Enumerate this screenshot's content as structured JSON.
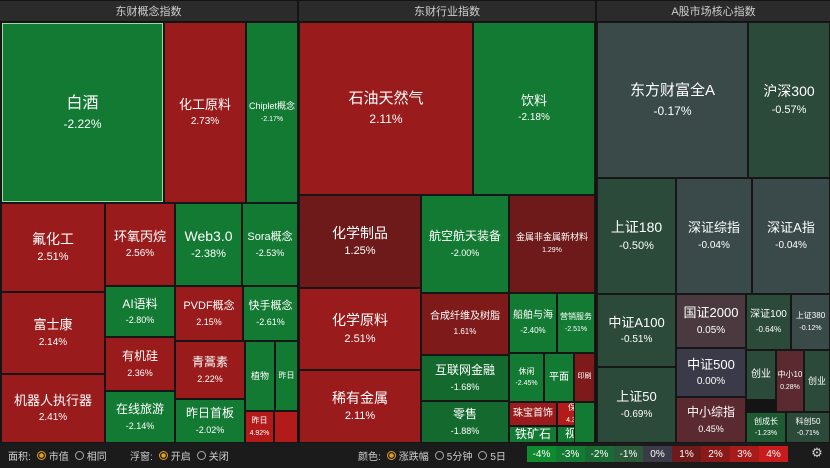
{
  "panels": {
    "concept": "东财概念指数",
    "industry": "东财行业指数",
    "core": "A股市场核心指数"
  },
  "tiles": [
    {
      "n": "白酒",
      "p": "-2.22%",
      "c": "#137a33"
    },
    {
      "n": "化工原料",
      "p": "2.73%",
      "c": "#9a1b1b"
    },
    {
      "n": "Chiplet概念",
      "p": "-2.17%",
      "c": "#137a33"
    },
    {
      "n": "氟化工",
      "p": "2.51%",
      "c": "#9a1b1b"
    },
    {
      "n": "环氧丙烷",
      "p": "2.56%",
      "c": "#9a1b1b"
    },
    {
      "n": "Web3.0",
      "p": "-2.38%",
      "c": "#137a33"
    },
    {
      "n": "Sora概念",
      "p": "-2.53%",
      "c": "#137a33"
    },
    {
      "n": "AI语料",
      "p": "-2.80%",
      "c": "#137a33"
    },
    {
      "n": "PVDF概念",
      "p": "2.15%",
      "c": "#9a1b1b"
    },
    {
      "n": "快手概念",
      "p": "-2.61%",
      "c": "#137a33"
    },
    {
      "n": "富士康",
      "p": "2.14%",
      "c": "#9a1b1b"
    },
    {
      "n": "有机硅",
      "p": "2.36%",
      "c": "#9a1b1b"
    },
    {
      "n": "青蒿素",
      "p": "2.22%",
      "c": "#9a1b1b"
    },
    {
      "n": "植物",
      "p": "",
      "c": "#137a33"
    },
    {
      "n": "昨日",
      "p": "",
      "c": "#137a33"
    },
    {
      "n": "机器人执行器",
      "p": "2.41%",
      "c": "#9a1b1b"
    },
    {
      "n": "在线旅游",
      "p": "-2.14%",
      "c": "#137a33"
    },
    {
      "n": "昨日首板",
      "p": "-2.02%",
      "c": "#137a33"
    },
    {
      "n": "昨日",
      "p": "4.92%",
      "c": "#b31b1b"
    },
    {
      "n": "",
      "p": "",
      "c": "#b31b1b"
    },
    {
      "n": "石油天然气",
      "p": "2.11%",
      "c": "#9a1b1b"
    },
    {
      "n": "饮料",
      "p": "-2.18%",
      "c": "#137a33"
    },
    {
      "n": "化学制品",
      "p": "1.25%",
      "c": "#6e1a1a"
    },
    {
      "n": "航空航天装备",
      "p": "-2.00%",
      "c": "#137a33"
    },
    {
      "n": "金属非金属新材料",
      "p": "1.29%",
      "c": "#6e1a1a"
    },
    {
      "n": "化学原料",
      "p": "2.51%",
      "c": "#9a1b1b"
    },
    {
      "n": "合成纤维及树脂",
      "p": "1.61%",
      "c": "#7f1a1a"
    },
    {
      "n": "船舶与海",
      "p": "-2.40%",
      "c": "#137a33"
    },
    {
      "n": "营销服务",
      "p": "-2.51%",
      "c": "#137a33"
    },
    {
      "n": "互联网金融",
      "p": "-1.68%",
      "c": "#146a2e"
    },
    {
      "n": "休闲",
      "p": "-2.45%",
      "c": "#137a33"
    },
    {
      "n": "平面",
      "p": "",
      "c": "#137a33"
    },
    {
      "n": "印刷",
      "p": "",
      "c": "#7f1a1a"
    },
    {
      "n": "稀有金属",
      "p": "2.11%",
      "c": "#9a1b1b"
    },
    {
      "n": "零售",
      "p": "-1.88%",
      "c": "#146a2e"
    },
    {
      "n": "珠宝首饰",
      "p": "",
      "c": "#9a1b1b"
    },
    {
      "n": "保健",
      "p": "4.34%",
      "c": "#b31b1b"
    },
    {
      "n": "铁矿石",
      "p": "",
      "c": "#137a33"
    },
    {
      "n": "视听",
      "p": "",
      "c": "#137a33"
    },
    {
      "n": "",
      "p": "",
      "c": "#137a33"
    },
    {
      "n": "东方财富全A",
      "p": "-0.17%",
      "c": "#3a4a48"
    },
    {
      "n": "沪深300",
      "p": "-0.57%",
      "c": "#2c4a3a"
    },
    {
      "n": "上证180",
      "p": "-0.50%",
      "c": "#2c4a3a"
    },
    {
      "n": "深证综指",
      "p": "-0.04%",
      "c": "#3a4a4a"
    },
    {
      "n": "深证A指",
      "p": "-0.04%",
      "c": "#3a4a4a"
    },
    {
      "n": "中证A100",
      "p": "-0.51%",
      "c": "#2c4a3a"
    },
    {
      "n": "国证2000",
      "p": "0.05%",
      "c": "#4a3a40"
    },
    {
      "n": "深证100",
      "p": "-0.64%",
      "c": "#2c4a3a"
    },
    {
      "n": "上证380",
      "p": "-0.12%",
      "c": "#3a4a48"
    },
    {
      "n": "中证500",
      "p": "0.00%",
      "c": "#3a3a48"
    },
    {
      "n": "创业",
      "p": "",
      "c": "#2c4a3a"
    },
    {
      "n": "中小10",
      "p": "0.28%",
      "c": "#5a2a30"
    },
    {
      "n": "创业",
      "p": "",
      "c": "#2c4a3a"
    },
    {
      "n": "上证50",
      "p": "-0.69%",
      "c": "#2c4a3a"
    },
    {
      "n": "中小综指",
      "p": "0.45%",
      "c": "#5a2a30"
    },
    {
      "n": "创成长",
      "p": "-1.23%",
      "c": "#1f5a35"
    },
    {
      "n": "科创50",
      "p": "-0.71%",
      "c": "#2c4a3a"
    }
  ],
  "footer": {
    "area_label": "面积:",
    "area_opt1": "市值",
    "area_opt2": "相同",
    "float_label": "浮窗:",
    "float_opt1": "开启",
    "float_opt2": "关闭",
    "color_label": "颜色:",
    "color_opt1": "涨跌幅",
    "color_opt2": "5分钟",
    "color_opt3": "5日"
  },
  "legend": [
    {
      "t": "-4%",
      "c": "#0f8a2f"
    },
    {
      "t": "-3%",
      "c": "#137a33"
    },
    {
      "t": "-2%",
      "c": "#1a6a33"
    },
    {
      "t": "-1%",
      "c": "#2a5a3a"
    },
    {
      "t": "0%",
      "c": "#3a3a48"
    },
    {
      "t": "1%",
      "c": "#6e1a1a"
    },
    {
      "t": "2%",
      "c": "#8a1a1a"
    },
    {
      "t": "3%",
      "c": "#a81b1b"
    },
    {
      "t": "4%",
      "c": "#c81c1c"
    }
  ]
}
